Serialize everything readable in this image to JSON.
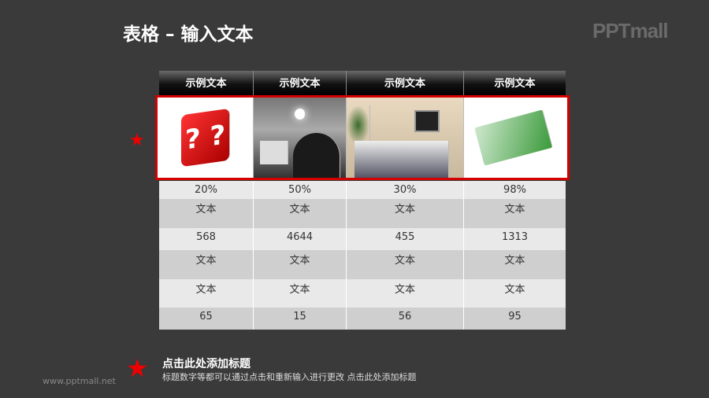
{
  "title": "表格 – 输入文本",
  "logo": "PPTmall",
  "headers": [
    "示例文本",
    "示例文本",
    "示例文本",
    "示例文本"
  ],
  "images": [
    "red-question-dice",
    "man-with-laptop-lightbulb",
    "business-meeting-presentation",
    "euro-banknote-stacks"
  ],
  "rows": [
    [
      "20%",
      "50%",
      "30%",
      "98%"
    ],
    [
      "文本",
      "文本",
      "文本",
      "文本"
    ],
    [
      "568",
      "4644",
      "455",
      "1313"
    ],
    [
      "文本",
      "文本",
      "文本",
      "文本"
    ],
    [
      "文本",
      "文本",
      "文本",
      "文本"
    ],
    [
      "65",
      "15",
      "56",
      "95"
    ]
  ],
  "footer": {
    "title": "点击此处添加标题",
    "desc": "标题数字等都可以通过点击和重新输入进行更改 点击此处添加标题",
    "url": "www.pptmall.net"
  },
  "colors": {
    "accent": "#d40000",
    "background": "#3a3a3a"
  }
}
